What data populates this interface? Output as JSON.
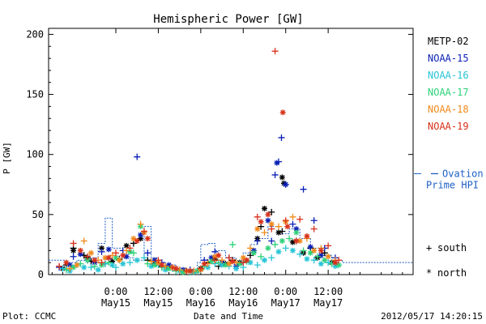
{
  "chart_data": {
    "type": "scatter",
    "title": "Hemispheric Power [GW]",
    "ylabel": "P [GW]",
    "xlabel": "Date and Time",
    "footer_left": "Plot: CCMC",
    "footer_right": "2012/05/17 14:20:15",
    "ylim": [
      0,
      205
    ],
    "xlim_hours": [
      -19,
      84
    ],
    "yticks": [
      0,
      50,
      100,
      150,
      200
    ],
    "xticks": [
      {
        "h": 0,
        "time": "0:00",
        "date": "May15"
      },
      {
        "h": 12,
        "time": "12:00",
        "date": "May15"
      },
      {
        "h": 24,
        "time": "0:00",
        "date": "May16"
      },
      {
        "h": 36,
        "time": "12:00",
        "date": "May16"
      },
      {
        "h": 48,
        "time": "0:00",
        "date": "May17"
      },
      {
        "h": 60,
        "time": "12:00",
        "date": "May17"
      }
    ],
    "grid": false,
    "legend": {
      "placement": "right",
      "markers": [
        {
          "symbol": "+",
          "label": "south"
        },
        {
          "symbol": "*",
          "label": "north"
        }
      ]
    },
    "series": [
      {
        "name": "METP-02",
        "color": "#000000",
        "south": [
          [
            -14,
            8
          ],
          [
            -12,
            22
          ],
          [
            -9,
            16
          ],
          [
            -7,
            11
          ],
          [
            -3,
            9
          ],
          [
            1,
            13
          ],
          [
            5,
            26
          ],
          [
            9,
            12
          ],
          [
            13,
            7
          ],
          [
            18,
            4
          ],
          [
            22,
            3
          ],
          [
            26,
            10
          ],
          [
            29,
            7
          ],
          [
            33,
            12
          ],
          [
            38,
            16
          ],
          [
            41,
            40
          ],
          [
            44,
            52
          ],
          [
            47,
            36
          ],
          [
            51,
            28
          ],
          [
            55,
            22
          ],
          [
            59,
            18
          ]
        ],
        "north": [
          [
            -15,
            5
          ],
          [
            -12,
            20
          ],
          [
            -8,
            14
          ],
          [
            -4,
            22
          ],
          [
            -1,
            11
          ],
          [
            3,
            24
          ],
          [
            7,
            30
          ],
          [
            11,
            9
          ],
          [
            15,
            6
          ],
          [
            20,
            3
          ],
          [
            24,
            5
          ],
          [
            28,
            13
          ],
          [
            31,
            9
          ],
          [
            35,
            10
          ],
          [
            40,
            30
          ],
          [
            42,
            55
          ],
          [
            46,
            35
          ],
          [
            47,
            81
          ],
          [
            47.5,
            76
          ],
          [
            50,
            27
          ],
          [
            53,
            18
          ],
          [
            57,
            14
          ],
          [
            61,
            10
          ]
        ]
      },
      {
        "name": "NOAA-15",
        "color": "#0a1fb4",
        "south": [
          [
            -16,
            6
          ],
          [
            -12,
            15
          ],
          [
            -8,
            12
          ],
          [
            -4,
            19
          ],
          [
            -2,
            13
          ],
          [
            2,
            20
          ],
          [
            6,
            98
          ],
          [
            9,
            18
          ],
          [
            13,
            10
          ],
          [
            17,
            5
          ],
          [
            21,
            4
          ],
          [
            25,
            12
          ],
          [
            28,
            19
          ],
          [
            32,
            14
          ],
          [
            36,
            10
          ],
          [
            40,
            28
          ],
          [
            44,
            28
          ],
          [
            45,
            83
          ],
          [
            46,
            94
          ],
          [
            46.8,
            114
          ],
          [
            48,
            75
          ],
          [
            50,
            42
          ],
          [
            53,
            71
          ],
          [
            56,
            45
          ],
          [
            59,
            22
          ],
          [
            62,
            14
          ]
        ],
        "north": [
          [
            -13,
            8
          ],
          [
            -10,
            17
          ],
          [
            -6,
            10
          ],
          [
            -2,
            21
          ],
          [
            3,
            15
          ],
          [
            7,
            33
          ],
          [
            11,
            12
          ],
          [
            15,
            8
          ],
          [
            19,
            4
          ],
          [
            23,
            3
          ],
          [
            27,
            14
          ],
          [
            30,
            10
          ],
          [
            34,
            7
          ],
          [
            39,
            20
          ],
          [
            43,
            45
          ],
          [
            45.5,
            93
          ],
          [
            48,
            75
          ],
          [
            51,
            38
          ],
          [
            55,
            23
          ],
          [
            58,
            16
          ],
          [
            62,
            10
          ]
        ]
      },
      {
        "name": "NOAA-16",
        "color": "#27c4d6",
        "south": [
          [
            -15,
            5
          ],
          [
            -11,
            8
          ],
          [
            -7,
            6
          ],
          [
            -3,
            9
          ],
          [
            0,
            6
          ],
          [
            4,
            10
          ],
          [
            8,
            14
          ],
          [
            12,
            8
          ],
          [
            16,
            5
          ],
          [
            20,
            3
          ],
          [
            24,
            4
          ],
          [
            28,
            9
          ],
          [
            32,
            7
          ],
          [
            36,
            6
          ],
          [
            40,
            8
          ],
          [
            44,
            14
          ],
          [
            48,
            22
          ],
          [
            52,
            17
          ],
          [
            56,
            12
          ],
          [
            60,
            10
          ],
          [
            63,
            8
          ]
        ],
        "north": [
          [
            -13,
            3
          ],
          [
            -9,
            6
          ],
          [
            -5,
            4
          ],
          [
            -1,
            8
          ],
          [
            2,
            9
          ],
          [
            6,
            12
          ],
          [
            10,
            7
          ],
          [
            14,
            4
          ],
          [
            18,
            3
          ],
          [
            22,
            2
          ],
          [
            26,
            6
          ],
          [
            30,
            8
          ],
          [
            34,
            5
          ],
          [
            38,
            10
          ],
          [
            42,
            12
          ],
          [
            46,
            19
          ],
          [
            50,
            20
          ],
          [
            54,
            13
          ],
          [
            58,
            9
          ],
          [
            62,
            7
          ]
        ]
      },
      {
        "name": "NOAA-17",
        "color": "#2fd27a",
        "south": [
          [
            -14,
            4
          ],
          [
            -10,
            9
          ],
          [
            -6,
            7
          ],
          [
            -2,
            10
          ],
          [
            1,
            12
          ],
          [
            5,
            18
          ],
          [
            9,
            9
          ],
          [
            13,
            6
          ],
          [
            17,
            3
          ],
          [
            21,
            2
          ],
          [
            25,
            7
          ],
          [
            29,
            10
          ],
          [
            33,
            25
          ],
          [
            37,
            11
          ],
          [
            41,
            15
          ],
          [
            45,
            25
          ],
          [
            49,
            30
          ],
          [
            53,
            20
          ],
          [
            57,
            15
          ],
          [
            61,
            9
          ]
        ],
        "north": [
          [
            -12,
            6
          ],
          [
            -8,
            12
          ],
          [
            -4,
            8
          ],
          [
            0,
            14
          ],
          [
            4,
            19
          ],
          [
            7,
            40
          ],
          [
            11,
            8
          ],
          [
            15,
            5
          ],
          [
            19,
            2
          ],
          [
            23,
            3
          ],
          [
            27,
            11
          ],
          [
            31,
            8
          ],
          [
            35,
            9
          ],
          [
            39,
            18
          ],
          [
            43,
            22
          ],
          [
            47,
            28
          ],
          [
            51,
            35
          ],
          [
            55,
            18
          ],
          [
            59,
            12
          ],
          [
            63,
            8
          ]
        ]
      },
      {
        "name": "NOAA-18",
        "color": "#f08a1c",
        "south": [
          [
            -13,
            5
          ],
          [
            -9,
            28
          ],
          [
            -5,
            12
          ],
          [
            -1,
            16
          ],
          [
            3,
            20
          ],
          [
            7,
            42
          ],
          [
            10,
            11
          ],
          [
            14,
            7
          ],
          [
            18,
            4
          ],
          [
            22,
            3
          ],
          [
            26,
            9
          ],
          [
            30,
            12
          ],
          [
            34,
            10
          ],
          [
            38,
            22
          ],
          [
            42,
            35
          ],
          [
            46,
            40
          ],
          [
            50,
            48
          ],
          [
            54,
            30
          ],
          [
            58,
            22
          ],
          [
            62,
            12
          ]
        ],
        "north": [
          [
            -11,
            8
          ],
          [
            -7,
            18
          ],
          [
            -3,
            14
          ],
          [
            1,
            12
          ],
          [
            5,
            30
          ],
          [
            8,
            35
          ],
          [
            12,
            10
          ],
          [
            16,
            6
          ],
          [
            20,
            3
          ],
          [
            24,
            4
          ],
          [
            28,
            15
          ],
          [
            32,
            9
          ],
          [
            36,
            14
          ],
          [
            40,
            38
          ],
          [
            44,
            42
          ],
          [
            48,
            44
          ],
          [
            52,
            28
          ],
          [
            56,
            20
          ],
          [
            60,
            15
          ]
        ]
      },
      {
        "name": "NOAA-19",
        "color": "#d8311a",
        "south": [
          [
            -16,
            7
          ],
          [
            -12,
            26
          ],
          [
            -8,
            15
          ],
          [
            -4,
            10
          ],
          [
            0,
            18
          ],
          [
            4,
            22
          ],
          [
            8,
            36
          ],
          [
            12,
            12
          ],
          [
            16,
            6
          ],
          [
            20,
            3
          ],
          [
            24,
            5
          ],
          [
            28,
            12
          ],
          [
            32,
            14
          ],
          [
            36,
            10
          ],
          [
            40,
            48
          ],
          [
            44,
            38
          ],
          [
            45,
            186
          ],
          [
            48,
            45
          ],
          [
            52,
            46
          ],
          [
            56,
            38
          ],
          [
            60,
            24
          ],
          [
            63,
            12
          ]
        ],
        "north": [
          [
            -14,
            10
          ],
          [
            -10,
            20
          ],
          [
            -6,
            12
          ],
          [
            -2,
            14
          ],
          [
            2,
            16
          ],
          [
            6,
            28
          ],
          [
            9,
            30
          ],
          [
            13,
            8
          ],
          [
            17,
            5
          ],
          [
            21,
            3
          ],
          [
            25,
            9
          ],
          [
            29,
            16
          ],
          [
            33,
            11
          ],
          [
            37,
            12
          ],
          [
            41,
            44
          ],
          [
            43,
            50
          ],
          [
            47.2,
            135
          ],
          [
            48.5,
            40
          ],
          [
            51,
            28
          ],
          [
            54,
            32
          ],
          [
            58,
            20
          ],
          [
            62,
            10
          ]
        ]
      }
    ],
    "ovation": {
      "name": "Ovation Prime HPI",
      "label_line1": "Ovation",
      "label_line2": "Prime HPI",
      "color": "#1e5fc4",
      "marker_value": 84,
      "steps": [
        [
          -19,
          12
        ],
        [
          -14,
          10
        ],
        [
          -11,
          12
        ],
        [
          -8,
          14
        ],
        [
          -5,
          26
        ],
        [
          -3,
          47
        ],
        [
          -1,
          22
        ],
        [
          2,
          14
        ],
        [
          5,
          12
        ],
        [
          8,
          40
        ],
        [
          10,
          14
        ],
        [
          12,
          10
        ],
        [
          14,
          8
        ],
        [
          17,
          5
        ],
        [
          20,
          3
        ],
        [
          23,
          10
        ],
        [
          24,
          25
        ],
        [
          26,
          26
        ],
        [
          28,
          20
        ],
        [
          31,
          14
        ],
        [
          34,
          10
        ],
        [
          36,
          18
        ],
        [
          38,
          25
        ],
        [
          40,
          30
        ],
        [
          43,
          40
        ],
        [
          46,
          34
        ],
        [
          49,
          38
        ],
        [
          52,
          30
        ],
        [
          55,
          22
        ],
        [
          58,
          16
        ],
        [
          61,
          12
        ],
        [
          64,
          10
        ]
      ]
    }
  }
}
